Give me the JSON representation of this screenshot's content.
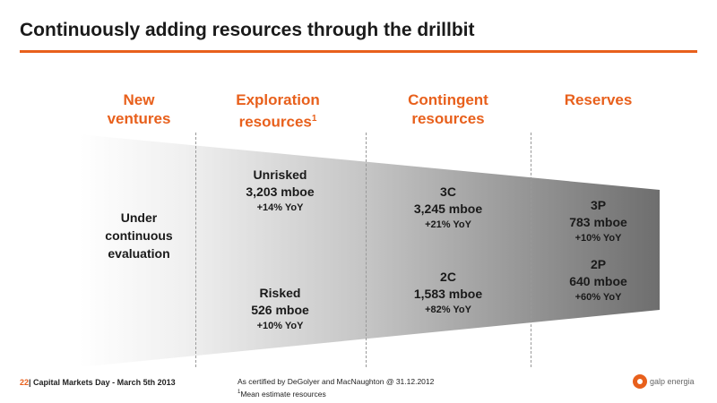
{
  "title": "Continuously adding resources through the drillbit",
  "columns": [
    {
      "line1": "New",
      "line2": "ventures"
    },
    {
      "line1": "Exploration",
      "line2": "resources",
      "sup": "1"
    },
    {
      "line1": "Contingent",
      "line2": "resources"
    },
    {
      "line1": "Reserves"
    }
  ],
  "new_ventures": {
    "line1": "Under",
    "line2": "continuous",
    "line3": "evaluation"
  },
  "exploration": {
    "unrisked": {
      "label": "Unrisked",
      "value": "3,203 mboe",
      "yoy": "+14% YoY"
    },
    "risked": {
      "label": "Risked",
      "value": "526 mboe",
      "yoy": "+10% YoY"
    }
  },
  "contingent": {
    "c3": {
      "label": "3C",
      "value": "3,245 mboe",
      "yoy": "+21% YoY"
    },
    "c2": {
      "label": "2C",
      "value": "1,583 mboe",
      "yoy": "+82% YoY"
    }
  },
  "reserves": {
    "p3": {
      "label": "3P",
      "value": "783 mboe",
      "yoy": "+10% YoY"
    },
    "p2": {
      "label": "2P",
      "value": "640 mboe",
      "yoy": "+60% YoY"
    }
  },
  "footer": {
    "page": "22",
    "event": "Capital Markets Day - March 5th 2013",
    "note1": "As certified by DeGolyer and MacNaughton @ 31.12.2012",
    "note2_sup": "1",
    "note2": "Mean estimate resources",
    "logo_text": "galp energia"
  },
  "colors": {
    "accent": "#e8601c",
    "funnel_dark": "#6e6e6e"
  }
}
